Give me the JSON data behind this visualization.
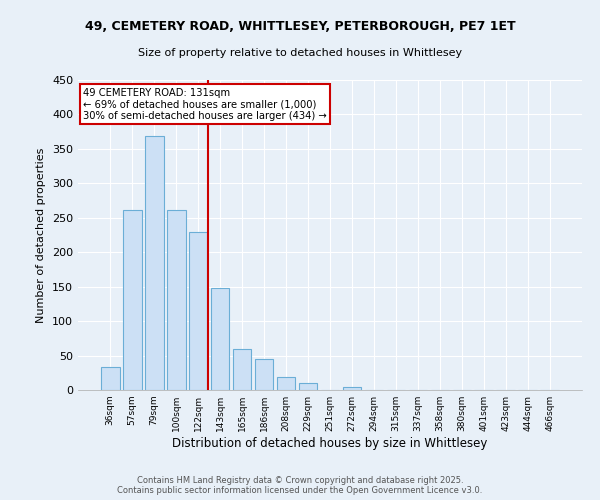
{
  "title_line1": "49, CEMETERY ROAD, WHITTLESEY, PETERBOROUGH, PE7 1ET",
  "title_line2": "Size of property relative to detached houses in Whittlesey",
  "xlabel": "Distribution of detached houses by size in Whittlesey",
  "ylabel": "Number of detached properties",
  "bar_values": [
    33,
    262,
    369,
    261,
    229,
    148,
    60,
    45,
    19,
    10,
    0,
    5,
    0,
    0,
    0,
    0,
    0,
    0,
    0,
    0,
    0
  ],
  "bar_labels": [
    "36sqm",
    "57sqm",
    "79sqm",
    "100sqm",
    "122sqm",
    "143sqm",
    "165sqm",
    "186sqm",
    "208sqm",
    "229sqm",
    "251sqm",
    "272sqm",
    "294sqm",
    "315sqm",
    "337sqm",
    "358sqm",
    "380sqm",
    "401sqm",
    "423sqm",
    "444sqm",
    "466sqm"
  ],
  "bar_color": "#cce0f5",
  "bar_edge_color": "#6baed6",
  "vline_color": "#cc0000",
  "annotation_text": "49 CEMETERY ROAD: 131sqm\n← 69% of detached houses are smaller (1,000)\n30% of semi-detached houses are larger (434) →",
  "annotation_box_color": "#cc0000",
  "ylim": [
    0,
    450
  ],
  "yticks": [
    0,
    50,
    100,
    150,
    200,
    250,
    300,
    350,
    400,
    450
  ],
  "background_color": "#e8f0f8",
  "plot_bg_color": "#e8f0f8",
  "footer_line1": "Contains HM Land Registry data © Crown copyright and database right 2025.",
  "footer_line2": "Contains public sector information licensed under the Open Government Licence v3.0."
}
